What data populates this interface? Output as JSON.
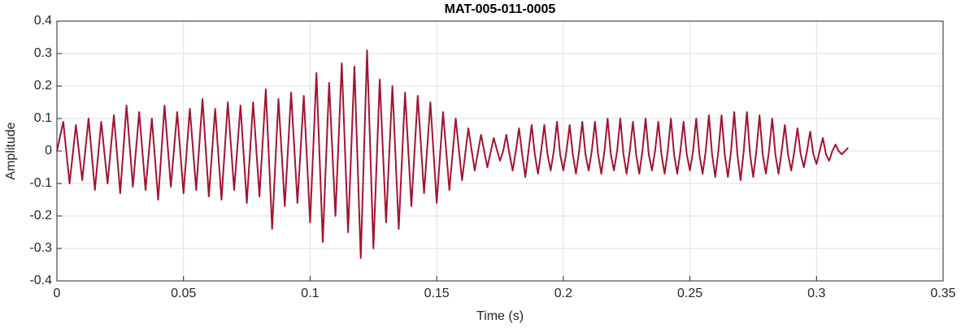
{
  "chart_data": {
    "type": "line",
    "title": "MAT-005-011-0005",
    "x_label": "Time (s)",
    "y_label": "Amplitude",
    "color": "#a2142f",
    "grid": true,
    "xlim": [
      0,
      0.35
    ],
    "xticks": [
      0,
      0.05,
      0.1,
      0.15,
      0.2,
      0.25,
      0.3,
      0.35
    ],
    "ylim": [
      -0.4,
      0.4
    ],
    "yticks": [
      -0.4,
      -0.3,
      -0.2,
      -0.1,
      0,
      0.1,
      0.2,
      0.3,
      0.4
    ],
    "x": [
      0,
      0.0025,
      0.005,
      0.0075,
      0.01,
      0.0125,
      0.015,
      0.0175,
      0.02,
      0.0225,
      0.025,
      0.0275,
      0.03,
      0.0325,
      0.035,
      0.0375,
      0.04,
      0.0425,
      0.045,
      0.0475,
      0.05,
      0.0525,
      0.055,
      0.0575,
      0.06,
      0.0625,
      0.065,
      0.0675,
      0.07,
      0.0725,
      0.075,
      0.0775,
      0.08,
      0.0825,
      0.085,
      0.0875,
      0.09,
      0.0925,
      0.095,
      0.0975,
      0.1,
      0.1025,
      0.105,
      0.1075,
      0.11,
      0.1125,
      0.115,
      0.1175,
      0.12,
      0.1225,
      0.125,
      0.1275,
      0.13,
      0.1325,
      0.135,
      0.1375,
      0.14,
      0.1425,
      0.145,
      0.1475,
      0.15,
      0.1525,
      0.155,
      0.1575,
      0.16,
      0.1625,
      0.165,
      0.1675,
      0.17,
      0.1725,
      0.175,
      0.17625,
      0.1775,
      0.17875,
      0.18,
      0.18125,
      0.1825,
      0.18375,
      0.185,
      0.18625,
      0.1875,
      0.18875,
      0.19,
      0.19125,
      0.1925,
      0.19375,
      0.195,
      0.19625,
      0.1975,
      0.19875,
      0.2,
      0.20125,
      0.2025,
      0.20375,
      0.205,
      0.20625,
      0.2075,
      0.20875,
      0.21,
      0.21125,
      0.2125,
      0.21375,
      0.215,
      0.21625,
      0.2175,
      0.21875,
      0.22,
      0.22125,
      0.2225,
      0.22375,
      0.225,
      0.22625,
      0.2275,
      0.22875,
      0.23,
      0.23125,
      0.2325,
      0.23375,
      0.235,
      0.23625,
      0.2375,
      0.23875,
      0.24,
      0.24125,
      0.2425,
      0.24375,
      0.245,
      0.24625,
      0.2475,
      0.24875,
      0.25,
      0.25125,
      0.2525,
      0.25375,
      0.255,
      0.25625,
      0.2575,
      0.25875,
      0.26,
      0.26125,
      0.2625,
      0.26375,
      0.265,
      0.26625,
      0.2675,
      0.26875,
      0.27,
      0.27125,
      0.2725,
      0.27375,
      0.275,
      0.27625,
      0.2775,
      0.27875,
      0.28,
      0.28125,
      0.2825,
      0.28375,
      0.285,
      0.28625,
      0.2875,
      0.28875,
      0.29,
      0.29125,
      0.2925,
      0.29375,
      0.295,
      0.29625,
      0.2975,
      0.29875,
      0.3,
      0.30125,
      0.3025,
      0.30375,
      0.305,
      0.30625,
      0.3075,
      0.30875,
      0.31,
      0.31125,
      0.3125
    ],
    "values": [
      0,
      0.09,
      -0.1,
      0.08,
      -0.09,
      0.1,
      -0.12,
      0.09,
      -0.1,
      0.11,
      -0.13,
      0.14,
      -0.11,
      0.12,
      -0.12,
      0.1,
      -0.15,
      0.14,
      -0.11,
      0.12,
      -0.13,
      0.13,
      -0.12,
      0.16,
      -0.14,
      0.13,
      -0.15,
      0.15,
      -0.12,
      0.14,
      -0.16,
      0.15,
      -0.14,
      0.19,
      -0.24,
      0.16,
      -0.17,
      0.18,
      -0.16,
      0.17,
      -0.22,
      0.24,
      -0.28,
      0.21,
      -0.2,
      0.27,
      -0.25,
      0.26,
      -0.33,
      0.31,
      -0.3,
      0.22,
      -0.22,
      0.2,
      -0.24,
      0.18,
      -0.17,
      0.17,
      -0.13,
      0.15,
      -0.16,
      0.12,
      -0.12,
      0.1,
      -0.09,
      0.07,
      -0.06,
      0.05,
      -0.05,
      0.04,
      -0.03,
      0,
      0.05,
      -0.01,
      -0.06,
      0,
      0.07,
      -0.01,
      -0.08,
      0,
      0.08,
      -0.01,
      -0.07,
      0,
      0.08,
      -0.01,
      -0.06,
      0,
      0.09,
      -0.01,
      -0.06,
      0,
      0.08,
      -0.01,
      -0.07,
      0,
      0.09,
      -0.01,
      -0.06,
      0,
      0.09,
      -0.01,
      -0.07,
      0,
      0.1,
      -0.01,
      -0.06,
      0,
      0.1,
      -0.01,
      -0.07,
      0,
      0.09,
      -0.01,
      -0.07,
      0,
      0.1,
      -0.01,
      -0.06,
      0,
      0.09,
      -0.01,
      -0.07,
      0,
      0.1,
      -0.01,
      -0.07,
      0,
      0.09,
      -0.01,
      -0.06,
      0,
      0.1,
      -0.01,
      -0.07,
      0,
      0.11,
      -0.01,
      -0.08,
      0,
      0.11,
      -0.01,
      -0.08,
      0,
      0.12,
      -0.01,
      -0.09,
      0,
      0.12,
      -0.01,
      -0.08,
      0,
      0.11,
      -0.01,
      -0.07,
      0,
      0.1,
      -0.01,
      -0.07,
      0,
      0.08,
      -0.01,
      -0.06,
      0,
      0.07,
      -0.01,
      -0.05,
      0,
      0.06,
      -0.01,
      -0.04,
      0,
      0.04,
      -0.01,
      -0.03,
      0,
      0.02,
      0,
      -0.01,
      0,
      0.01
    ]
  }
}
